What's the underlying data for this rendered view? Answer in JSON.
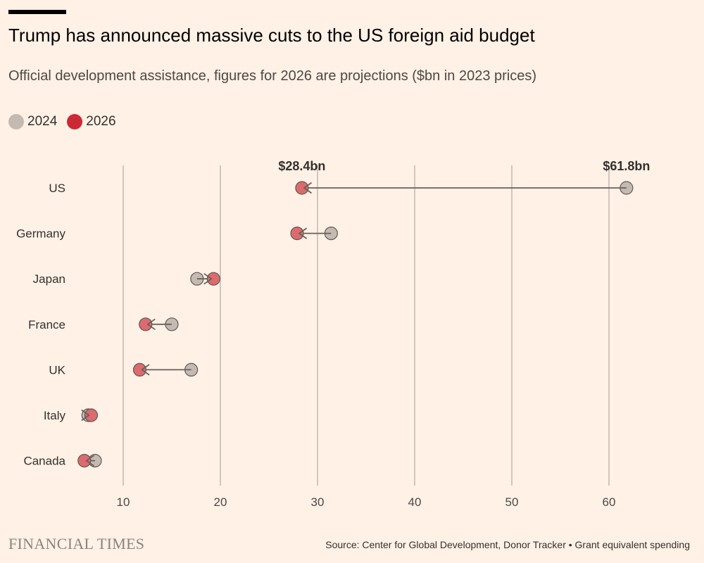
{
  "chart_data": {
    "type": "dumbbell",
    "title": "Trump has announced massive cuts to the US foreign aid budget",
    "subtitle": "Official development assistance, figures for 2026 are projections ($bn in 2023 prices)",
    "legend": [
      {
        "label": "2024",
        "color": "#C5BAB1"
      },
      {
        "label": "2026",
        "color": "#CC2936"
      }
    ],
    "categories": [
      "US",
      "Germany",
      "Japan",
      "France",
      "UK",
      "Italy",
      "Canada"
    ],
    "series": [
      {
        "name": "2024",
        "values": [
          61.8,
          31.4,
          17.6,
          15.0,
          17.0,
          6.4,
          7.1
        ]
      },
      {
        "name": "2026",
        "values": [
          28.4,
          27.9,
          19.3,
          12.3,
          11.7,
          6.7,
          6.0
        ]
      }
    ],
    "annotations": [
      {
        "text": "$28.4bn",
        "x": 28.4
      },
      {
        "text": "$61.8bn",
        "x": 61.8
      }
    ],
    "xticks": [
      10,
      20,
      30,
      40,
      50,
      60
    ],
    "xlim": [
      0,
      65
    ],
    "xlabel": "",
    "ylabel": "",
    "grid": true,
    "legend_position": "top-left"
  },
  "footer": {
    "logo": "FINANCIAL TIMES",
    "source": "Source: Center for Global Development, Donor Tracker • Grant equivalent spending"
  },
  "colors": {
    "background": "#FFF1E5",
    "gridline": "#B7AEA7",
    "connector": "#66605C",
    "dot_2024": "#C5BAB1",
    "dot_2026": "#DC6B6F",
    "legend_2026": "#CC2936"
  }
}
